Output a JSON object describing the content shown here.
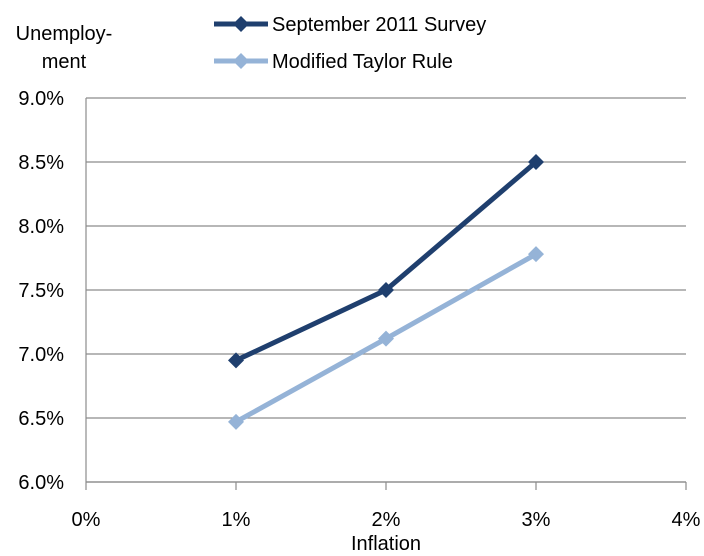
{
  "chart_data": {
    "type": "line",
    "xlabel": "Inflation",
    "ylabel_lines": [
      "Unemploy-",
      "ment"
    ],
    "xlim": [
      0,
      4
    ],
    "ylim": [
      6.0,
      9.0
    ],
    "x_ticks": [
      "0%",
      "1%",
      "2%",
      "3%",
      "4%"
    ],
    "y_ticks": [
      "6.0%",
      "6.5%",
      "7.0%",
      "7.5%",
      "8.0%",
      "8.5%",
      "9.0%"
    ],
    "grid": "horizontal",
    "legend_position": "top",
    "series": [
      {
        "name": "September 2011 Survey",
        "color": "#1f3f6e",
        "marker": "diamond",
        "x": [
          1,
          2,
          3
        ],
        "y": [
          6.95,
          7.5,
          8.5
        ]
      },
      {
        "name": "Modified Taylor Rule",
        "color": "#95b3d7",
        "marker": "diamond",
        "x": [
          1,
          2,
          3
        ],
        "y": [
          6.47,
          7.12,
          7.78
        ]
      }
    ]
  }
}
